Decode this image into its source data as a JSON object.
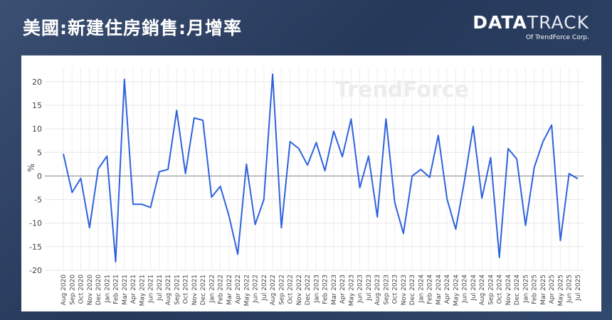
{
  "header": {
    "title": "美國:新建住房銷售:月增率",
    "logo_bold": "DATA",
    "logo_light": "TRACK",
    "logo_subtitle": "Of TrendForce Corp."
  },
  "chart_data": {
    "type": "line",
    "y_label": "%",
    "watermark": "TrendForce",
    "color": "#2e62dd",
    "grid": true,
    "ylim": [
      -20,
      23
    ],
    "yticks": [
      -20,
      -15,
      -10,
      -5,
      0,
      5,
      10,
      15,
      20
    ],
    "categories": [
      "Aug 2020",
      "Sep 2020",
      "Oct 2020",
      "Nov 2020",
      "Dec 2020",
      "Jan 2021",
      "Feb 2021",
      "Mar 2021",
      "Apr 2021",
      "May 2021",
      "Jun 2021",
      "Jul 2021",
      "Aug 2021",
      "Sep 2021",
      "Oct 2021",
      "Nov 2021",
      "Dec 2021",
      "Jan 2022",
      "Feb 2022",
      "Mar 2022",
      "Apr 2022",
      "May 2022",
      "Jun 2022",
      "Jul 2022",
      "Aug 2022",
      "Sep 2022",
      "Oct 2022",
      "Nov 2022",
      "Dec 2022",
      "Jan 2023",
      "Feb 2023",
      "Mar 2023",
      "Apr 2023",
      "May 2023",
      "Jun 2023",
      "Jul 2023",
      "Aug 2023",
      "Sep 2023",
      "Oct 2023",
      "Nov 2023",
      "Dec 2023",
      "Jan 2024",
      "Feb 2024",
      "Mar 2024",
      "Apr 2024",
      "May 2024",
      "Jun 2024",
      "Jul 2024",
      "Aug 2024",
      "Sep 2024",
      "Oct 2024",
      "Nov 2024",
      "Dec 2024",
      "Jan 2025",
      "Feb 2025",
      "Mar 2025",
      "Apr 2025",
      "May 2025",
      "Jun 2025",
      "Jul 2025"
    ],
    "values": [
      4.7,
      -3.5,
      -0.5,
      -11,
      1.5,
      4.2,
      -18.2,
      20.5,
      -6,
      -6,
      -6.7,
      0.9,
      1.4,
      13.9,
      0.5,
      12.3,
      11.8,
      -4.5,
      -2.2,
      -8.5,
      -16.6,
      2.5,
      -10.3,
      -5,
      21.6,
      -11,
      7.3,
      5.8,
      2.3,
      7.1,
      1.1,
      9.5,
      4.1,
      12.1,
      -2.5,
      4.2,
      -8.7,
      12.1,
      -5.6,
      -12.2,
      0,
      1.4,
      -0.3,
      8.6,
      -4.9,
      -11.3,
      -1,
      10.5,
      -4.7,
      3.9,
      -17.3,
      5.8,
      3.6,
      -10.5,
      1.8,
      7.3,
      10.8,
      -13.7,
      0.5,
      -0.6
    ]
  }
}
